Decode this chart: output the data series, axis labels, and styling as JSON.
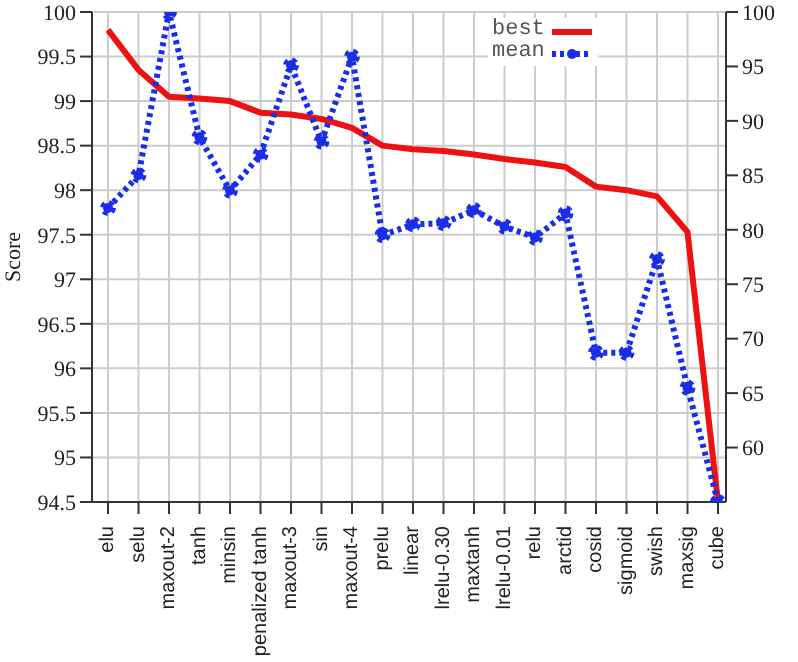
{
  "chart_data": {
    "type": "line",
    "ylabel": "Score",
    "categories": [
      "elu",
      "selu",
      "maxout-2",
      "tanh",
      "minsin",
      "penalized tanh",
      "maxout-3",
      "sin",
      "maxout-4",
      "prelu",
      "linear",
      "lrelu-0.30",
      "maxtanh",
      "lrelu-0.01",
      "relu",
      "arctid",
      "cosid",
      "sigmoid",
      "swish",
      "maxsig",
      "cube"
    ],
    "series": [
      {
        "name": "best",
        "color": "#ee1111",
        "line_style": "solid",
        "marker": "none",
        "values": [
          99.8,
          99.35,
          99.05,
          99.03,
          99.0,
          98.87,
          98.85,
          98.8,
          98.7,
          98.5,
          98.46,
          98.44,
          98.4,
          98.35,
          98.31,
          98.26,
          98.04,
          98.0,
          97.93,
          97.53,
          94.5
        ]
      },
      {
        "name": "mean",
        "color": "#1a2ee8",
        "line_style": "dotted",
        "marker": "circle",
        "axis": "y2",
        "values": [
          82,
          85,
          100,
          88.5,
          83.6,
          86.9,
          95.1,
          88.1,
          95.9,
          79.5,
          80.5,
          80.6,
          81.8,
          80.3,
          79.3,
          81.5,
          68.7,
          68.7,
          77.3,
          65.5,
          55
        ]
      }
    ],
    "ylim": [
      94.5,
      100
    ],
    "yticks": [
      94.5,
      95,
      95.5,
      96,
      96.5,
      97,
      97.5,
      98,
      98.5,
      99,
      99.5,
      100
    ],
    "y2lim": [
      55,
      100
    ],
    "y2ticks": [
      60,
      65,
      70,
      75,
      80,
      85,
      90,
      95,
      100
    ],
    "grid": true,
    "legend": "top right"
  }
}
